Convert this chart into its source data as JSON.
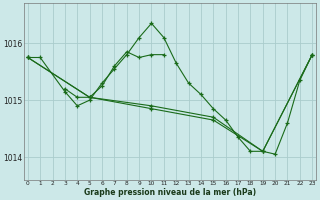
{
  "title": "Graphe pression niveau de la mer (hPa)",
  "bg_color": "#cce8e8",
  "grid_color": "#aacccc",
  "line_color": "#1a6b1a",
  "xlim": [
    -0.3,
    23.3
  ],
  "ylim": [
    1013.6,
    1016.7
  ],
  "yticks": [
    1014,
    1015,
    1016
  ],
  "xticks": [
    0,
    1,
    2,
    3,
    4,
    5,
    6,
    7,
    8,
    9,
    10,
    11,
    12,
    13,
    14,
    15,
    16,
    17,
    18,
    19,
    20,
    21,
    22,
    23
  ],
  "series": [
    {
      "x": [
        0,
        1,
        3,
        4,
        5,
        6,
        7,
        8,
        9,
        10,
        11,
        12,
        13,
        14,
        15,
        16,
        17,
        18,
        19,
        20,
        21,
        22,
        23
      ],
      "y": [
        1015.75,
        1015.75,
        1015.15,
        1014.9,
        1015.0,
        1015.3,
        1015.55,
        1015.8,
        1016.1,
        1016.35,
        1016.1,
        1015.65,
        1015.3,
        1015.1,
        1014.85,
        1014.65,
        1014.35,
        1014.1,
        1014.1,
        1014.05,
        1014.6,
        1015.35,
        1015.8
      ]
    },
    {
      "x": [
        3,
        4,
        5,
        6,
        7,
        8,
        9,
        10,
        11
      ],
      "y": [
        1015.2,
        1015.05,
        1015.05,
        1015.25,
        1015.6,
        1015.85,
        1015.75,
        1015.8,
        1015.8
      ]
    },
    {
      "x": [
        0,
        5,
        10,
        15,
        19,
        23
      ],
      "y": [
        1015.75,
        1015.05,
        1014.9,
        1014.7,
        1014.1,
        1015.8
      ]
    },
    {
      "x": [
        0,
        5,
        10,
        15,
        19,
        23
      ],
      "y": [
        1015.75,
        1015.05,
        1014.85,
        1014.65,
        1014.1,
        1015.8
      ]
    }
  ]
}
